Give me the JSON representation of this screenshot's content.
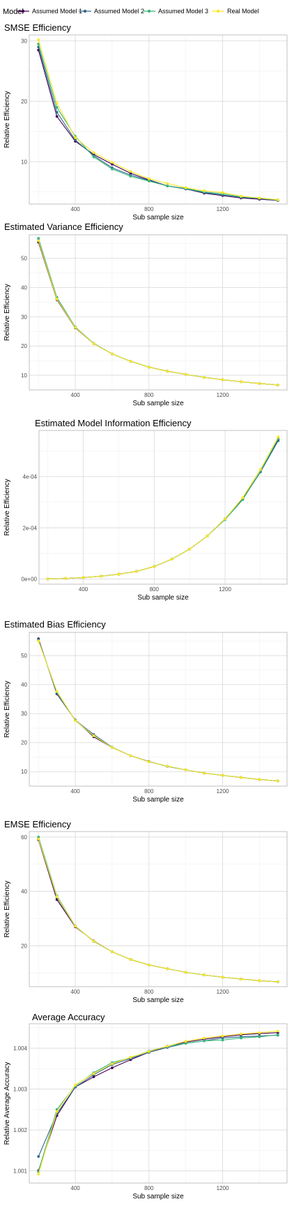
{
  "legend": {
    "title": "Model",
    "entries": [
      {
        "name": "Assumed Model 1",
        "color": "#440154"
      },
      {
        "name": "Assumed Model 2",
        "color": "#31688e"
      },
      {
        "name": "Assumed Model 3",
        "color": "#35b779"
      },
      {
        "name": "Real Model",
        "color": "#fde725"
      }
    ]
  },
  "chart_data": [
    {
      "type": "line",
      "title": "SMSE Efficiency",
      "xlabel": "Sub sample size",
      "ylabel": "Relative Efficiency",
      "xlim": [
        150,
        1550
      ],
      "ylim": [
        3,
        31
      ],
      "xticks": [
        400,
        800,
        1200
      ],
      "yticks": [
        10,
        20,
        30
      ],
      "ytick_labels": [
        "10",
        "20",
        "30"
      ],
      "x": [
        200,
        300,
        400,
        500,
        600,
        700,
        800,
        900,
        1000,
        1100,
        1200,
        1300,
        1400,
        1500
      ],
      "series": [
        {
          "name": "Assumed Model 1",
          "values": [
            28.5,
            17.5,
            13.4,
            11.2,
            9.6,
            8.1,
            7.0,
            6.0,
            5.5,
            4.8,
            4.4,
            4.0,
            3.8,
            3.6
          ]
        },
        {
          "name": "Assumed Model 2",
          "values": [
            29.0,
            18.2,
            13.6,
            11.0,
            9.0,
            7.8,
            6.9,
            6.0,
            5.5,
            4.9,
            4.5,
            4.1,
            3.9,
            3.6
          ]
        },
        {
          "name": "Assumed Model 3",
          "values": [
            29.5,
            19.0,
            14.2,
            10.8,
            8.8,
            7.6,
            6.8,
            6.0,
            5.6,
            5.0,
            4.7,
            4.2,
            4.0,
            3.7
          ]
        },
        {
          "name": "Real Model",
          "values": [
            30.2,
            19.7,
            14.0,
            11.5,
            9.9,
            8.4,
            7.2,
            6.4,
            5.7,
            5.2,
            4.9,
            4.3,
            4.0,
            3.7
          ]
        }
      ]
    },
    {
      "type": "line",
      "title": "Estimated Variance Efficiency",
      "xlabel": "Sub sample size",
      "ylabel": "Relative Efficiency",
      "xlim": [
        150,
        1550
      ],
      "ylim": [
        5,
        58
      ],
      "xticks": [
        400,
        800,
        1200
      ],
      "yticks": [
        10,
        20,
        30,
        40,
        50
      ],
      "ytick_labels": [
        "10",
        "20",
        "30",
        "40",
        "50"
      ],
      "x": [
        200,
        300,
        400,
        500,
        600,
        700,
        800,
        900,
        1000,
        1100,
        1200,
        1300,
        1400,
        1500
      ],
      "series": [
        {
          "name": "Assumed Model 1",
          "values": [
            55.5,
            35.8,
            26.2,
            20.8,
            17.3,
            14.8,
            12.8,
            11.4,
            10.3,
            9.3,
            8.5,
            7.8,
            7.2,
            6.7
          ]
        },
        {
          "name": "Assumed Model 2",
          "values": [
            56.2,
            36.3,
            26.4,
            20.9,
            17.3,
            14.8,
            12.8,
            11.4,
            10.3,
            9.3,
            8.5,
            7.8,
            7.2,
            6.7
          ]
        },
        {
          "name": "Assumed Model 3",
          "values": [
            56.8,
            36.6,
            26.5,
            20.9,
            17.3,
            14.8,
            12.8,
            11.4,
            10.3,
            9.3,
            8.5,
            7.8,
            7.2,
            6.7
          ]
        },
        {
          "name": "Real Model",
          "values": [
            56.0,
            36.0,
            26.3,
            20.8,
            17.3,
            14.8,
            12.8,
            11.4,
            10.3,
            9.3,
            8.5,
            7.8,
            7.2,
            6.7
          ]
        }
      ]
    },
    {
      "type": "line",
      "title": "Estimated Model Information Efficiency",
      "xlabel": "Sub sample size",
      "ylabel": "Relative Efficiency",
      "xlim": [
        150,
        1550
      ],
      "ylim": [
        -2e-05,
        0.00058
      ],
      "xticks": [
        400,
        800,
        1200
      ],
      "yticks": [
        0,
        0.0002,
        0.0004
      ],
      "ytick_labels": [
        "0e+00",
        "2e-04",
        "4e-04"
      ],
      "x": [
        200,
        300,
        400,
        500,
        600,
        700,
        800,
        900,
        1000,
        1100,
        1200,
        1300,
        1400,
        1500
      ],
      "series": [
        {
          "name": "Assumed Model 1",
          "values": [
            5e-07,
            2.5e-06,
            6e-06,
            1.1e-05,
            1.9e-05,
            3e-05,
            4.9e-05,
            7.8e-05,
            0.000117,
            0.000168,
            0.000235,
            0.000315,
            0.00042,
            0.000545
          ]
        },
        {
          "name": "Assumed Model 2",
          "values": [
            5e-07,
            2.5e-06,
            6e-06,
            1.1e-05,
            1.9e-05,
            3e-05,
            4.9e-05,
            7.8e-05,
            0.000117,
            0.000168,
            0.000235,
            0.000313,
            0.000418,
            0.00054
          ]
        },
        {
          "name": "Assumed Model 3",
          "values": [
            5e-07,
            2.5e-06,
            6e-06,
            1.1e-05,
            1.9e-05,
            3e-05,
            4.9e-05,
            7.8e-05,
            0.000117,
            0.000168,
            0.000232,
            0.00031,
            0.000422,
            0.000548
          ]
        },
        {
          "name": "Real Model",
          "values": [
            5e-07,
            2.5e-06,
            6e-06,
            1.1e-05,
            1.9e-05,
            3e-05,
            4.9e-05,
            7.8e-05,
            0.000117,
            0.000168,
            0.000235,
            0.000318,
            0.000428,
            0.000555
          ]
        }
      ]
    },
    {
      "type": "line",
      "title": "Estimated Bias Efficiency",
      "xlabel": "Sub sample size",
      "ylabel": "Relative Efficiency",
      "xlim": [
        150,
        1550
      ],
      "ylim": [
        5,
        58
      ],
      "xticks": [
        400,
        800,
        1200
      ],
      "yticks": [
        10,
        20,
        30,
        40,
        50
      ],
      "ytick_labels": [
        "10",
        "20",
        "30",
        "40",
        "50"
      ],
      "x": [
        200,
        300,
        400,
        500,
        600,
        700,
        800,
        900,
        1000,
        1100,
        1200,
        1300,
        1400,
        1500
      ],
      "series": [
        {
          "name": "Assumed Model 1",
          "values": [
            55.8,
            36.8,
            27.8,
            22.0,
            18.3,
            15.5,
            13.5,
            11.8,
            10.6,
            9.5,
            8.7,
            8.0,
            7.3,
            6.8
          ]
        },
        {
          "name": "Assumed Model 2",
          "values": [
            55.5,
            37.0,
            27.7,
            22.8,
            18.4,
            15.5,
            13.4,
            11.9,
            10.6,
            9.5,
            8.7,
            8.0,
            7.3,
            6.8
          ]
        },
        {
          "name": "Assumed Model 3",
          "values": [
            55.2,
            37.5,
            27.6,
            22.3,
            18.3,
            15.5,
            13.4,
            11.8,
            10.6,
            9.5,
            8.7,
            8.0,
            7.3,
            6.8
          ]
        },
        {
          "name": "Real Model",
          "values": [
            55.0,
            37.7,
            27.6,
            22.4,
            18.3,
            15.5,
            13.4,
            11.9,
            10.6,
            9.5,
            8.7,
            8.0,
            7.3,
            6.8
          ]
        }
      ]
    },
    {
      "type": "line",
      "title": "EMSE Efficiency",
      "xlabel": "Sub sample size",
      "ylabel": "Relative Efficiency",
      "xlim": [
        150,
        1550
      ],
      "ylim": [
        5,
        62
      ],
      "xticks": [
        400,
        800,
        1200
      ],
      "yticks": [
        20,
        40,
        60
      ],
      "ytick_labels": [
        "20",
        "40",
        "60"
      ],
      "x": [
        200,
        300,
        400,
        500,
        600,
        700,
        800,
        900,
        1000,
        1100,
        1200,
        1300,
        1400,
        1500
      ],
      "series": [
        {
          "name": "Assumed Model 1",
          "values": [
            59.0,
            37.0,
            27.0,
            21.8,
            17.8,
            15.0,
            13.0,
            11.6,
            10.3,
            9.3,
            8.5,
            7.8,
            7.2,
            6.8
          ]
        },
        {
          "name": "Assumed Model 2",
          "values": [
            59.5,
            37.8,
            27.2,
            21.7,
            17.8,
            15.0,
            13.0,
            11.6,
            10.3,
            9.3,
            8.5,
            7.8,
            7.2,
            6.8
          ]
        },
        {
          "name": "Assumed Model 3",
          "values": [
            60.0,
            38.4,
            27.3,
            21.6,
            17.8,
            15.0,
            13.0,
            11.6,
            10.3,
            9.3,
            8.5,
            7.8,
            7.2,
            6.8
          ]
        },
        {
          "name": "Real Model",
          "values": [
            59.3,
            38.1,
            27.2,
            21.7,
            17.8,
            15.0,
            13.0,
            11.6,
            10.3,
            9.3,
            8.5,
            7.8,
            7.2,
            6.8
          ]
        }
      ]
    },
    {
      "type": "line",
      "title": "Average Accuracy",
      "xlabel": "Sub sample size",
      "ylabel": "Relative Average Accuracy",
      "xlim": [
        150,
        1550
      ],
      "ylim": [
        1.0007,
        1.0046
      ],
      "xticks": [
        400,
        800,
        1200
      ],
      "yticks": [
        1.001,
        1.002,
        1.003,
        1.004
      ],
      "ytick_labels": [
        "1.001",
        "1.002",
        "1.003",
        "1.004"
      ],
      "x": [
        200,
        300,
        400,
        500,
        600,
        700,
        800,
        900,
        1000,
        1100,
        1200,
        1300,
        1400,
        1500
      ],
      "series": [
        {
          "name": "Assumed Model 1",
          "values": [
            1.001,
            1.00235,
            1.00305,
            1.0033,
            1.00352,
            1.00372,
            1.0039,
            1.00405,
            1.00415,
            1.00422,
            1.00428,
            1.00433,
            1.00436,
            1.00438
          ]
        },
        {
          "name": "Assumed Model 2",
          "values": [
            1.00135,
            1.0024,
            1.00305,
            1.00335,
            1.0036,
            1.00375,
            1.0039,
            1.00402,
            1.00412,
            1.00418,
            1.00425,
            1.00428,
            1.0043,
            1.00432
          ]
        },
        {
          "name": "Assumed Model 3",
          "values": [
            1.00098,
            1.0025,
            1.00308,
            1.0034,
            1.00365,
            1.00377,
            1.00393,
            1.00405,
            1.00412,
            1.00418,
            1.0042,
            1.00425,
            1.00428,
            1.00433
          ]
        },
        {
          "name": "Real Model",
          "values": [
            1.00092,
            1.00245,
            1.0031,
            1.00338,
            1.00362,
            1.00378,
            1.00392,
            1.00405,
            1.00417,
            1.00425,
            1.0043,
            1.00435,
            1.00438,
            1.00442
          ]
        }
      ]
    }
  ]
}
